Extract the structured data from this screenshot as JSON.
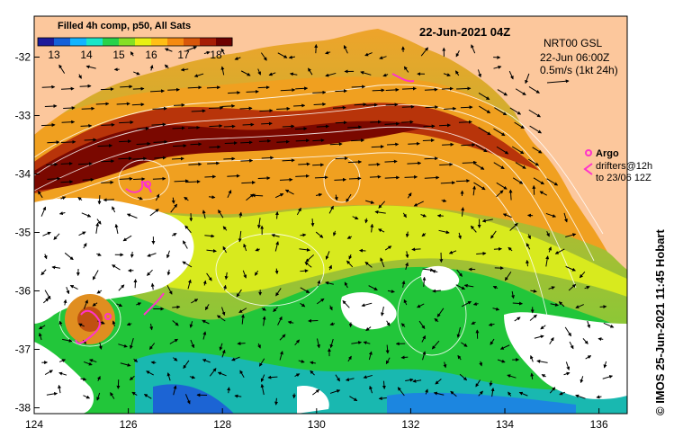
{
  "map": {
    "title": "22-Jun-2021 04Z",
    "product_label": "Filled 4h comp, p50, All Sats",
    "colorbar": {
      "ticks": [
        "13",
        "14",
        "15",
        "16",
        "17",
        "18"
      ],
      "range": [
        12.5,
        18.5
      ],
      "colors": [
        "#1d1a9a",
        "#1660d8",
        "#12b4ff",
        "#19e6c8",
        "#28d24a",
        "#86df24",
        "#e8f013",
        "#ffbf16",
        "#f58a10",
        "#d8560a",
        "#a61d06",
        "#6d0000"
      ]
    },
    "x_ticks": [
      "124",
      "126",
      "128",
      "130",
      "132",
      "134",
      "136"
    ],
    "y_ticks": [
      "-32",
      "-33",
      "-34",
      "-35",
      "-36",
      "-37",
      "-38"
    ],
    "lon_range": [
      124,
      136.6
    ],
    "lat_range": [
      -31.3,
      -38.1
    ],
    "current_info": {
      "model": "NRT00 GSL",
      "time": "22-Jun 06:00Z",
      "scale": "0.5m/s (1kt 24h)"
    },
    "legend": {
      "argo": "Argo",
      "drifters_line1": "drifters@12h",
      "drifters_line2": "to 23/06 12Z"
    },
    "credit": "©  IMOS 25-Jun-2021 11:45 Hobart",
    "land_color": "#fcc79c",
    "marker_color": "#ff33cc"
  }
}
